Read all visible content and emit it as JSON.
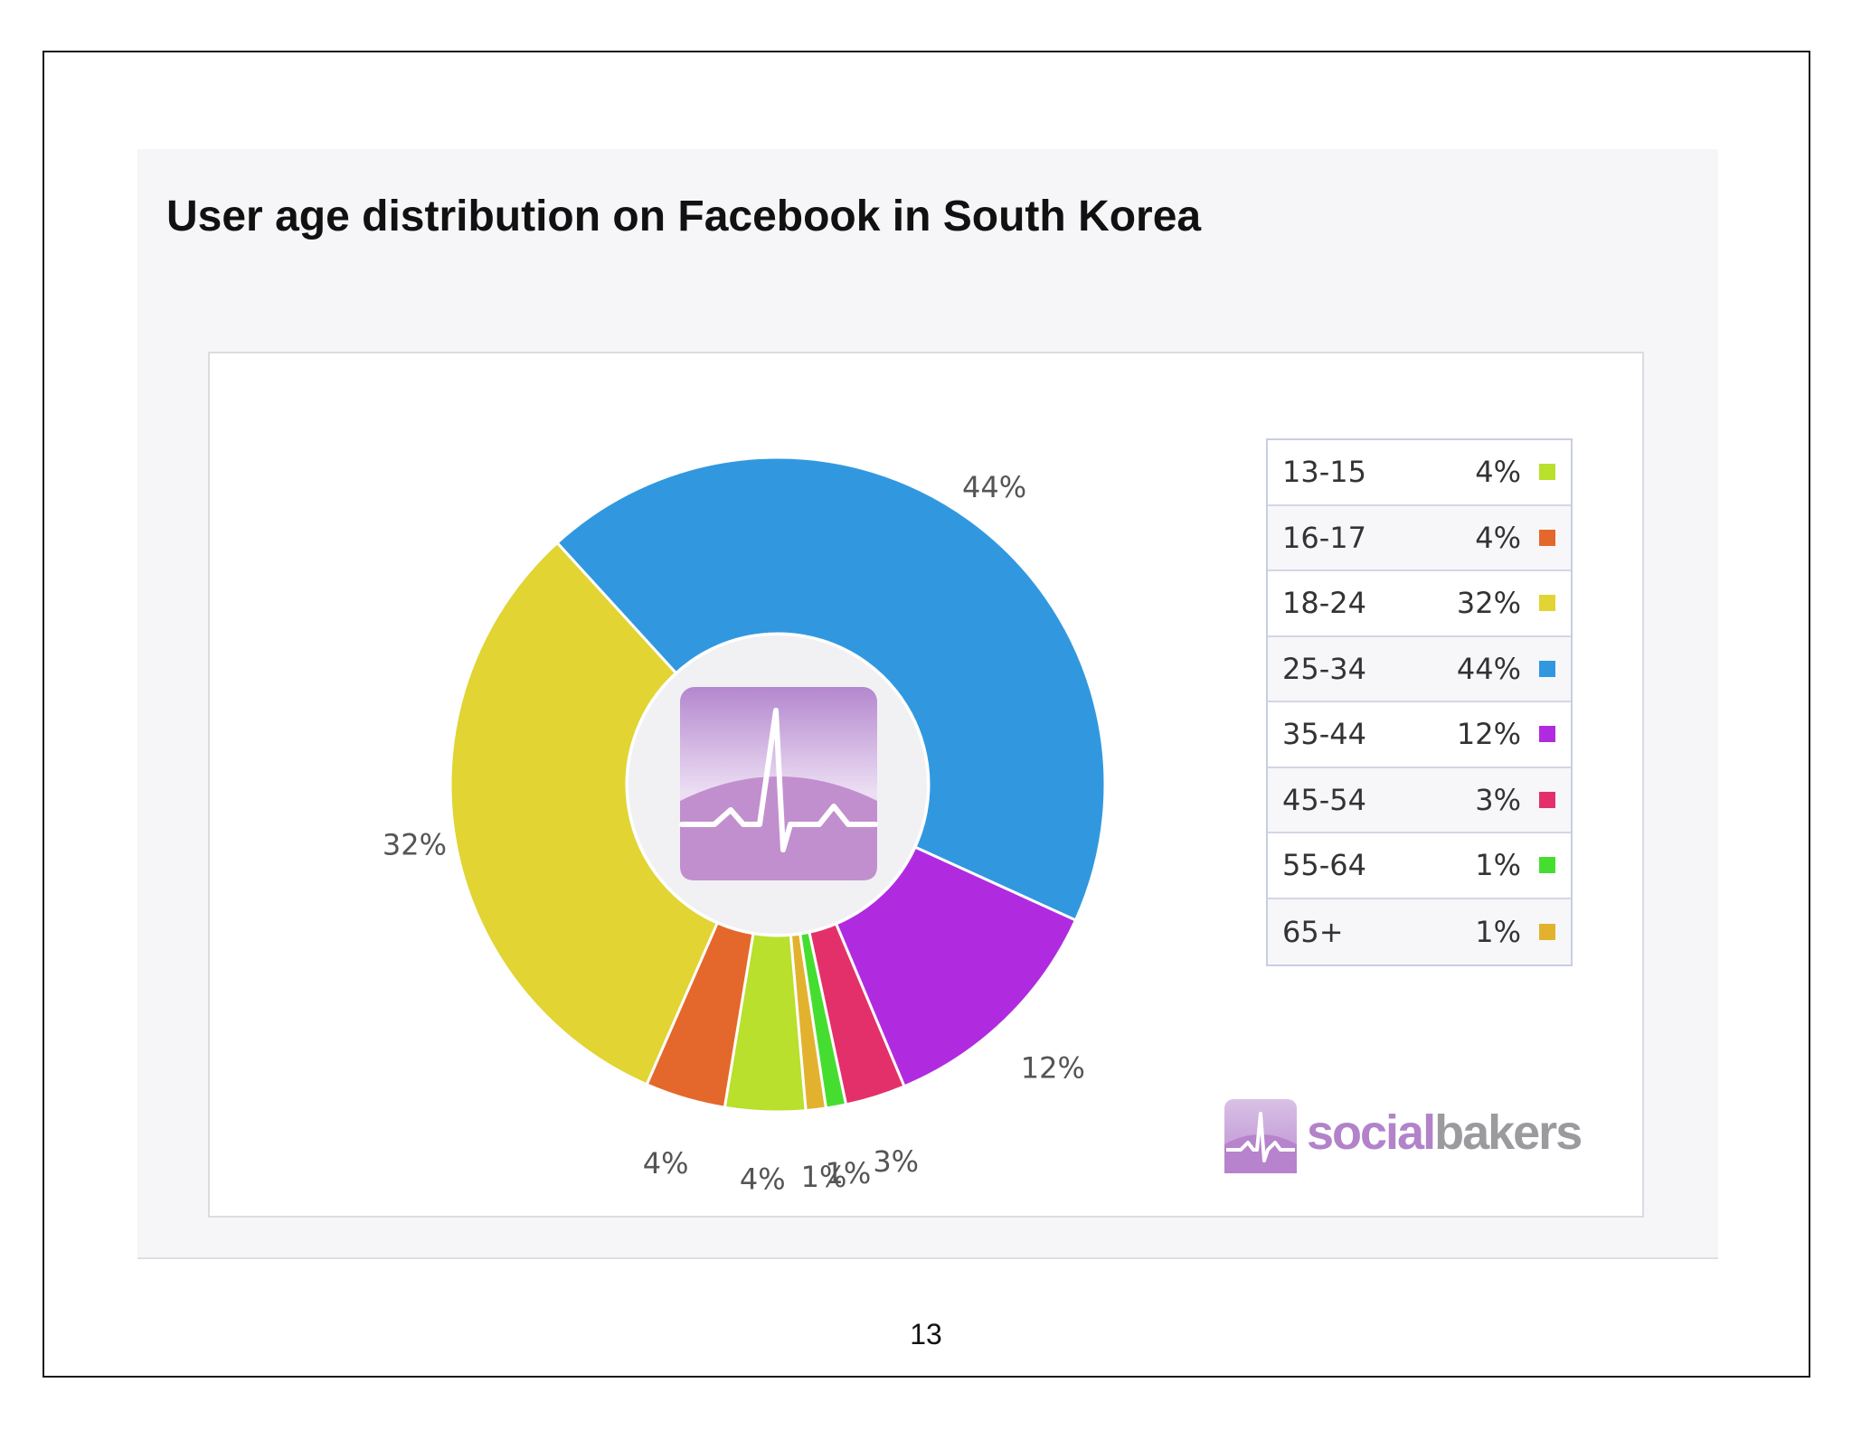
{
  "title": "User age distribution on Facebook in South Korea",
  "page_number": "13",
  "brand": {
    "part1": "social",
    "part2": "bakers",
    "icon": "socialbakers-logo-icon"
  },
  "center_icon": "heartbeat-logo-icon",
  "chart_data": {
    "type": "pie",
    "style": "donut",
    "title": "User age distribution on Facebook in South Korea",
    "legend_position": "right",
    "slices": [
      {
        "label": "13-15",
        "value": 4,
        "display": "4%",
        "color": "#b8e02c"
      },
      {
        "label": "16-17",
        "value": 4,
        "display": "4%",
        "color": "#e4682b"
      },
      {
        "label": "18-24",
        "value": 32,
        "display": "32%",
        "color": "#e1d433"
      },
      {
        "label": "25-34",
        "value": 44,
        "display": "44%",
        "color": "#3198e0"
      },
      {
        "label": "35-44",
        "value": 12,
        "display": "12%",
        "color": "#b02be0"
      },
      {
        "label": "45-54",
        "value": 3,
        "display": "3%",
        "color": "#e3306b"
      },
      {
        "label": "55-64",
        "value": 1,
        "display": "1%",
        "color": "#45de30"
      },
      {
        "label": "65+",
        "value": 1,
        "display": "1%",
        "color": "#e2b22f"
      }
    ]
  }
}
